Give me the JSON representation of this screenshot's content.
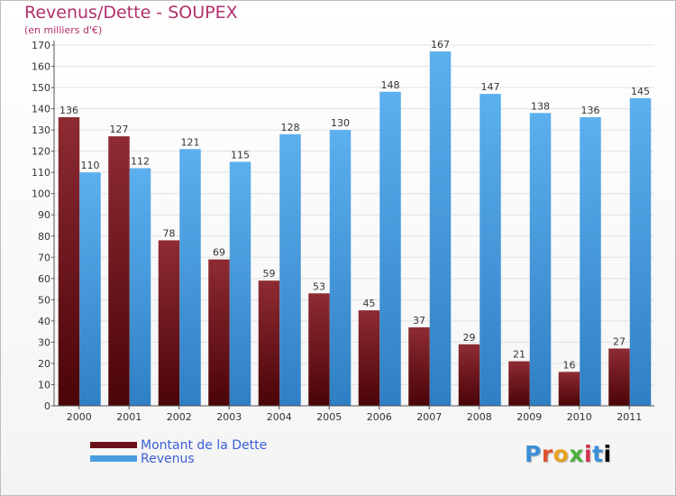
{
  "chart_data": {
    "type": "bar",
    "title": "Revenus/Dette - SOUPEX",
    "subtitle": "(en milliers d'€)",
    "categories": [
      "2000",
      "2001",
      "2002",
      "2003",
      "2004",
      "2005",
      "2006",
      "2007",
      "2008",
      "2009",
      "2010",
      "2011"
    ],
    "series": [
      {
        "name": "Montant de la Dette",
        "color": "#6b1018",
        "values": [
          136,
          127,
          78,
          69,
          59,
          53,
          45,
          37,
          29,
          21,
          16,
          27
        ]
      },
      {
        "name": "Revenus",
        "color": "#4a9ee0",
        "values": [
          110,
          112,
          121,
          115,
          128,
          130,
          148,
          167,
          147,
          138,
          136,
          145
        ]
      }
    ],
    "ylim": [
      0,
      170
    ],
    "yticks": [
      0,
      10,
      20,
      30,
      40,
      50,
      60,
      70,
      80,
      90,
      100,
      110,
      120,
      130,
      140,
      150,
      160,
      170
    ],
    "grid": true,
    "legend_position": "bottom-left"
  },
  "branding": {
    "letters": [
      "P",
      "r",
      "o",
      "x",
      "i",
      "t",
      "i"
    ]
  }
}
